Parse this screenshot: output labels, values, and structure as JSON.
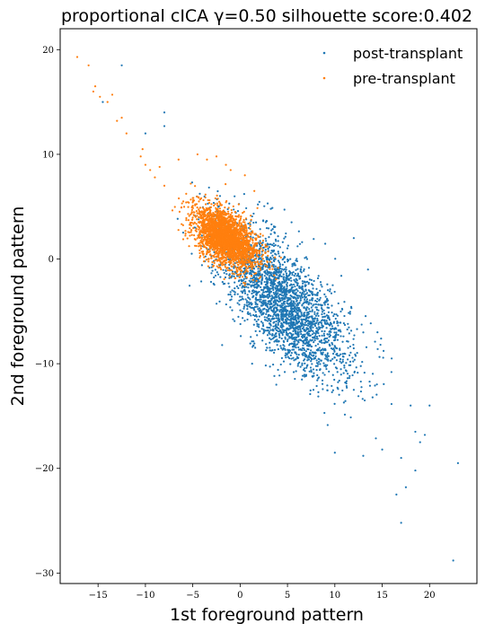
{
  "chart_data": {
    "type": "scatter",
    "title": "proportional cICA γ=0.50 silhouette score:0.402",
    "xlabel": "1st foreground pattern",
    "ylabel": "2nd foreground pattern",
    "xlim": [
      -19,
      25
    ],
    "ylim": [
      -31,
      22
    ],
    "xticks": [
      -15,
      -10,
      -5,
      0,
      5,
      10,
      15,
      20
    ],
    "yticks": [
      20,
      10,
      0,
      -10,
      -20,
      -30
    ],
    "xtick_labels": [
      "−15",
      "−10",
      "−5",
      "0",
      "5",
      "10",
      "15",
      "20"
    ],
    "ytick_labels": [
      "20",
      "10",
      "0",
      "−10",
      "−20",
      "−30"
    ],
    "grid": false,
    "legend_position": "top-right",
    "series": [
      {
        "name": "post-transplant",
        "color": "#1f77b4",
        "cloud": {
          "count": 2600,
          "center": [
            4.5,
            -4.0
          ],
          "spread_along": 4.6,
          "spread_across": 2.0,
          "slope": -1.05
        },
        "points": [
          [
            -12.5,
            18.5
          ],
          [
            -14.5,
            15.0
          ],
          [
            -8.0,
            14.0
          ],
          [
            -8.0,
            12.7
          ],
          [
            -10.0,
            12.0
          ],
          [
            23.0,
            -19.5
          ],
          [
            22.5,
            -28.8
          ],
          [
            17.0,
            -25.2
          ],
          [
            16.5,
            -22.5
          ],
          [
            17.5,
            -21.8
          ],
          [
            18.5,
            -20.2
          ],
          [
            19.0,
            -17.5
          ],
          [
            18.5,
            -16.5
          ],
          [
            19.5,
            -16.8
          ],
          [
            17.0,
            -19.0
          ],
          [
            15.0,
            -18.2
          ],
          [
            13.0,
            -18.8
          ],
          [
            10.0,
            -18.5
          ],
          [
            12.0,
            -12.5
          ],
          [
            20.0,
            -14.0
          ],
          [
            18.0,
            -14.0
          ],
          [
            13.5,
            -1.0
          ],
          [
            12.0,
            2.0
          ],
          [
            14.5,
            -7.0
          ],
          [
            16.0,
            -9.5
          ]
        ]
      },
      {
        "name": "pre-transplant",
        "color": "#ff7f0e",
        "cloud": {
          "count": 2600,
          "center": [
            -1.5,
            2.0
          ],
          "spread_along": 1.9,
          "spread_across": 1.1,
          "slope": -0.8
        },
        "points": [
          [
            -17.2,
            19.3
          ],
          [
            -16.0,
            18.5
          ],
          [
            -15.3,
            16.5
          ],
          [
            -15.5,
            16.0
          ],
          [
            -14.8,
            15.5
          ],
          [
            -13.5,
            15.7
          ],
          [
            -14.0,
            15.0
          ],
          [
            -12.5,
            13.5
          ],
          [
            -13.0,
            13.2
          ],
          [
            -12.0,
            12.0
          ],
          [
            -10.3,
            10.5
          ],
          [
            -10.5,
            9.8
          ],
          [
            -10.0,
            9.0
          ],
          [
            -9.5,
            8.5
          ],
          [
            -8.5,
            8.8
          ],
          [
            -9.0,
            7.8
          ],
          [
            -8.0,
            7.0
          ],
          [
            -6.5,
            9.5
          ],
          [
            -4.5,
            10.0
          ],
          [
            -3.5,
            9.5
          ],
          [
            -2.5,
            9.8
          ],
          [
            -1.5,
            9.0
          ],
          [
            -1.0,
            8.5
          ],
          [
            0.5,
            8.0
          ],
          [
            1.5,
            6.5
          ],
          [
            -6.0,
            5.5
          ]
        ]
      }
    ]
  }
}
